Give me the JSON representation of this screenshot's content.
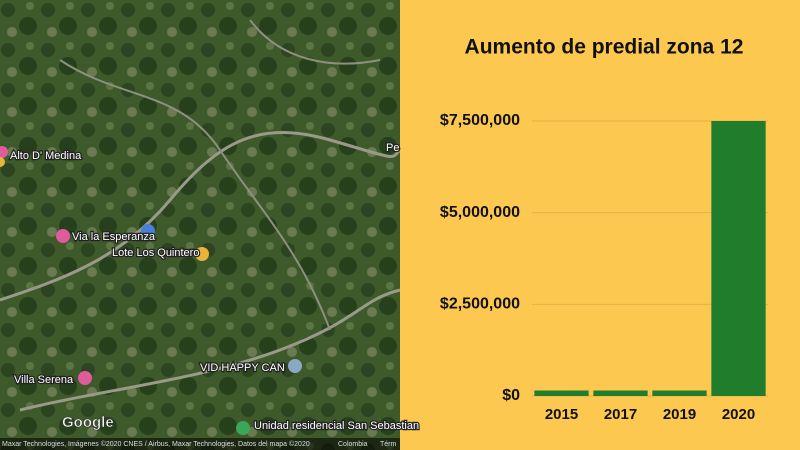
{
  "chart_data": {
    "type": "bar",
    "title": "Aumento de predial zona 12",
    "categories": [
      "2015",
      "2017",
      "2019",
      "2020"
    ],
    "values": [
      150000,
      150000,
      150000,
      7500000
    ],
    "color": "#1f7d2c",
    "ylim": [
      0,
      7500000
    ],
    "yticks": [
      {
        "value": 0,
        "label": "$0"
      },
      {
        "value": 2500000,
        "label": "$2,500,000"
      },
      {
        "value": 5000000,
        "label": "$5,000,000"
      },
      {
        "value": 7500000,
        "label": "$7,500,000"
      }
    ],
    "grid": true
  },
  "map": {
    "labels": [
      "Alto D' Medina",
      "Via la Esperanza",
      "Lote Los Quintero",
      "Villa Serena",
      "VID HAPPY CAN",
      "Unidad residencial San Sebastian",
      "Pe"
    ],
    "logo": "Google",
    "attribution": "Maxar Technologies, Imágenes ©2020 CNES / Airbus, Maxar Technologies, Datos del mapa ©2020",
    "country": "Colombia",
    "terms": "Térm"
  }
}
